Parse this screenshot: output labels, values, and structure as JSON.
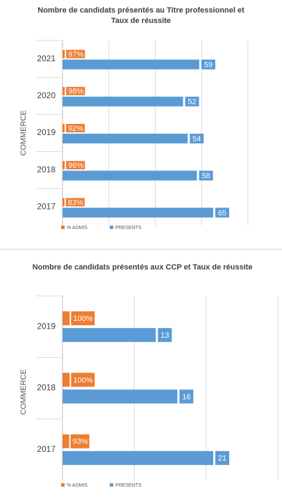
{
  "chart_data": [
    {
      "type": "bar",
      "orientation": "horizontal",
      "title": "Nombre de candidats présentés au Titre professionnel et Taux de réussite",
      "y_label": "COMMERCE",
      "categories": [
        "2021",
        "2020",
        "2019",
        "2018",
        "2017"
      ],
      "series": [
        {
          "name": "% ADMIS",
          "color": "#ED7D31",
          "values": [
            0.97,
            0.98,
            0.92,
            0.96,
            0.83
          ],
          "value_labels": [
            "97%",
            "98%",
            "92%",
            "96%",
            "83%"
          ]
        },
        {
          "name": "PRESENTS",
          "color": "#5B9BD5",
          "values": [
            59,
            52,
            54,
            58,
            65
          ]
        }
      ],
      "xlim": [
        0,
        80
      ],
      "xticks": [
        0,
        20,
        40,
        60,
        80
      ],
      "grid": true
    },
    {
      "type": "bar",
      "orientation": "horizontal",
      "title": "Nombre de candidats présentés aux CCP et Taux de réussite",
      "y_label": "COMMERCE",
      "categories": [
        "2019",
        "2018",
        "2017"
      ],
      "series": [
        {
          "name": "% ADMIS",
          "color": "#ED7D31",
          "values": [
            1.0,
            1.0,
            0.93
          ],
          "value_labels": [
            "100%",
            "100%",
            "93%"
          ]
        },
        {
          "name": "PRESENTS",
          "color": "#5B9BD5",
          "values": [
            13,
            16,
            21
          ]
        }
      ],
      "xlim": [
        0,
        30
      ],
      "xticks": [
        0,
        10,
        20,
        30
      ],
      "grid": true
    }
  ]
}
